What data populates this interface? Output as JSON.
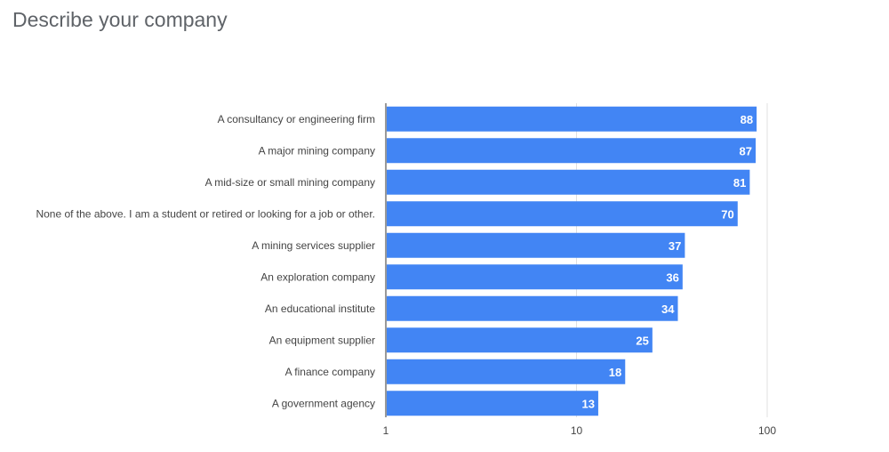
{
  "chart_data": {
    "type": "bar",
    "orientation": "horizontal",
    "title": "Describe your company",
    "xlabel": "",
    "ylabel": "",
    "x_scale": "log",
    "xlim": [
      1,
      100
    ],
    "x_ticks": [
      "1",
      "10",
      "100"
    ],
    "x_tick_values": [
      1,
      10,
      100
    ],
    "grid": true,
    "legend": "none",
    "bar_color": "#4285f4",
    "categories": [
      "A consultancy or engineering firm",
      "A major mining company",
      "A mid-size or small mining company",
      "None of the above. I am a student or retired or looking for a job or other.",
      "A mining services supplier",
      "An exploration company",
      "An educational institute",
      "An equipment supplier",
      "A finance company",
      "A government agency"
    ],
    "values": [
      88,
      87,
      81,
      70,
      37,
      36,
      34,
      25,
      18,
      13
    ]
  }
}
